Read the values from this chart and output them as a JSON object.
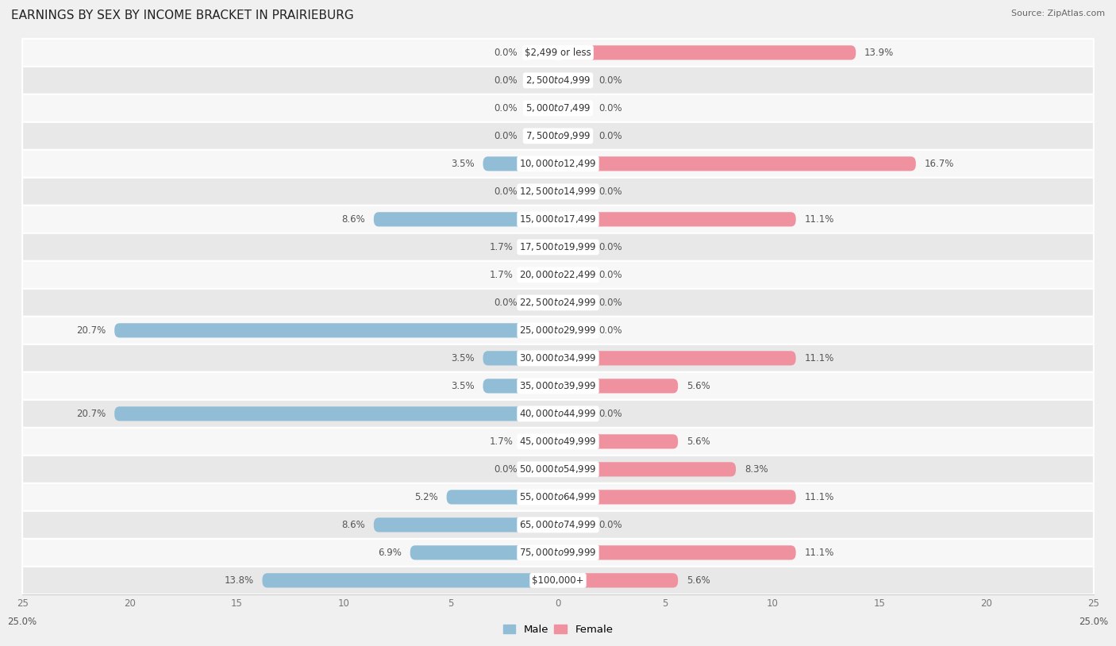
{
  "title": "EARNINGS BY SEX BY INCOME BRACKET IN PRAIRIEBURG",
  "source": "Source: ZipAtlas.com",
  "categories": [
    "$2,499 or less",
    "$2,500 to $4,999",
    "$5,000 to $7,499",
    "$7,500 to $9,999",
    "$10,000 to $12,499",
    "$12,500 to $14,999",
    "$15,000 to $17,499",
    "$17,500 to $19,999",
    "$20,000 to $22,499",
    "$22,500 to $24,999",
    "$25,000 to $29,999",
    "$30,000 to $34,999",
    "$35,000 to $39,999",
    "$40,000 to $44,999",
    "$45,000 to $49,999",
    "$50,000 to $54,999",
    "$55,000 to $64,999",
    "$65,000 to $74,999",
    "$75,000 to $99,999",
    "$100,000+"
  ],
  "male": [
    0.0,
    0.0,
    0.0,
    0.0,
    3.5,
    0.0,
    8.6,
    1.7,
    1.7,
    0.0,
    20.7,
    3.5,
    3.5,
    20.7,
    1.7,
    0.0,
    5.2,
    8.6,
    6.9,
    13.8
  ],
  "female": [
    13.9,
    0.0,
    0.0,
    0.0,
    16.7,
    0.0,
    11.1,
    0.0,
    0.0,
    0.0,
    0.0,
    11.1,
    5.6,
    0.0,
    5.6,
    8.3,
    11.1,
    0.0,
    11.1,
    5.6
  ],
  "male_color": "#92bdd6",
  "female_color": "#f0919f",
  "male_label": "Male",
  "female_label": "Female",
  "xlim": 25.0,
  "background_color": "#f0f0f0",
  "row_bg_light": "#f7f7f7",
  "row_bg_dark": "#e8e8e8",
  "title_fontsize": 11,
  "label_fontsize": 8.5,
  "value_fontsize": 8.5,
  "bar_height": 0.52,
  "min_bar_width": 1.5
}
